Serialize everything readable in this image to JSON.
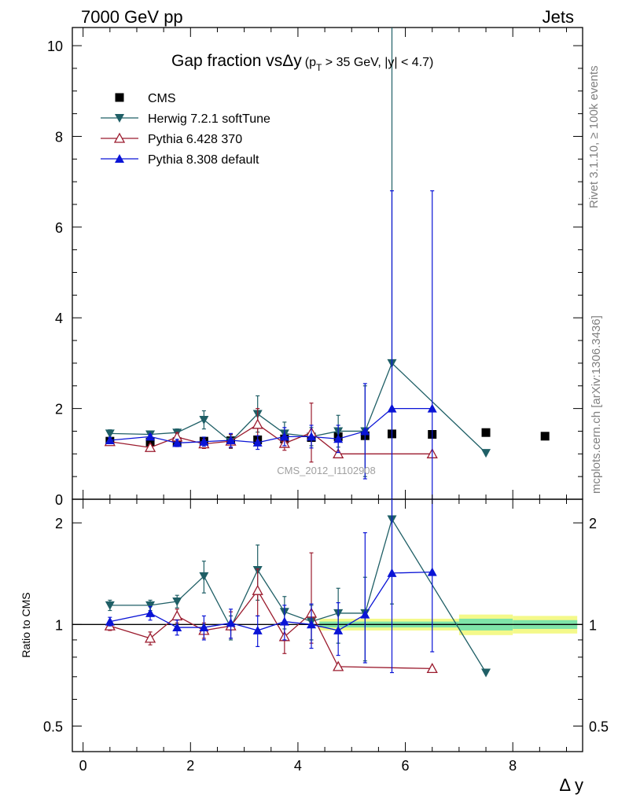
{
  "header": {
    "left": "7000 GeV pp",
    "right": "Jets"
  },
  "side_labels": {
    "rivet": "Rivet 3.1.10, ≥ 100k events",
    "mcplots": "mcplots.cern.ch [arXiv:1306.3436]"
  },
  "watermark": "CMS_2012_I1102908",
  "colors": {
    "CMS": "#000000",
    "Herwig": "#1f5f66",
    "Pythia6": "#9b1b2e",
    "Pythia8": "#0a14d6",
    "band_inner": "#7fe4a8",
    "band_outer": "#f4f98a"
  },
  "chart_data": [
    {
      "type": "scatter",
      "title_main": "Gap fraction vsΔy",
      "title_paren": "(p",
      "title_sub": "T",
      "title_rest": " > 35 GeV, |y| < 4.7)",
      "xlabel": "Δ y",
      "ylabel": "",
      "xlim": [
        -0.2,
        9.3
      ],
      "ylim": [
        0,
        10.4
      ],
      "y_ticks": [
        "0",
        "2",
        "4",
        "6",
        "8",
        "10"
      ],
      "x_ticks": [
        "0",
        "2",
        "4",
        "6",
        "8"
      ],
      "legend_position": "top-left",
      "series": [
        {
          "name": "CMS",
          "key": "CMS",
          "marker": "square",
          "x": [
            0.5,
            1.25,
            1.75,
            2.25,
            2.75,
            3.25,
            3.75,
            4.25,
            4.75,
            5.25,
            5.75,
            6.5,
            7.5,
            8.6
          ],
          "y": [
            1.28,
            1.26,
            1.27,
            1.28,
            1.29,
            1.31,
            1.33,
            1.36,
            1.38,
            1.4,
            1.44,
            1.43,
            1.47,
            1.39
          ]
        },
        {
          "name": "Herwig 7.2.1 softTune",
          "key": "Herwig",
          "marker": "triangle-down",
          "x": [
            0.5,
            1.25,
            1.75,
            2.25,
            2.75,
            3.25,
            3.75,
            4.25,
            4.75,
            5.25,
            5.75,
            7.5
          ],
          "y": [
            1.45,
            1.43,
            1.47,
            1.75,
            1.27,
            1.88,
            1.45,
            1.38,
            1.5,
            1.5,
            3.0,
            1.02
          ],
          "err": [
            0.08,
            0.06,
            0.08,
            0.2,
            0.15,
            0.4,
            0.25,
            0.2,
            0.35,
            1.0,
            7.5,
            0
          ]
        },
        {
          "name": "Pythia 6.428 370",
          "key": "Pythia6",
          "marker": "triangle-up-open",
          "x": [
            0.5,
            1.25,
            1.75,
            2.25,
            2.75,
            3.25,
            3.75,
            4.25,
            4.75,
            6.5
          ],
          "y": [
            1.27,
            1.14,
            1.37,
            1.22,
            1.28,
            1.65,
            1.23,
            1.47,
            1.0,
            1.0
          ],
          "err": [
            0.05,
            0.07,
            0.1,
            0.1,
            0.15,
            0.35,
            0.15,
            0.65,
            0,
            0
          ]
        },
        {
          "name": "Pythia 8.308 default",
          "key": "Pythia8",
          "marker": "triangle-up",
          "x": [
            0.5,
            1.25,
            1.75,
            2.25,
            2.75,
            3.25,
            3.75,
            4.25,
            4.75,
            5.25,
            5.75,
            6.5
          ],
          "y": [
            1.3,
            1.38,
            1.24,
            1.27,
            1.3,
            1.25,
            1.38,
            1.38,
            1.33,
            1.5,
            2.0,
            2.0
          ],
          "err": [
            0.06,
            0.05,
            0.08,
            0.1,
            0.15,
            0.15,
            0.2,
            0.25,
            0.3,
            1.05,
            4.8,
            4.8
          ]
        }
      ]
    },
    {
      "type": "scatter",
      "title": "",
      "xlabel": "Δ y",
      "ylabel": "Ratio to CMS",
      "xlim": [
        -0.2,
        9.3
      ],
      "ylim": [
        0.42,
        2.35
      ],
      "y_scale": "log",
      "y_ticks": [
        "0.5",
        "1",
        "2"
      ],
      "reference_line": 1,
      "band": [
        {
          "x0": 4.4,
          "x1": 7.0,
          "inner": 0.02,
          "outer": 0.04
        },
        {
          "x0": 7.0,
          "x1": 8.0,
          "inner": 0.04,
          "outer": 0.07
        },
        {
          "x0": 8.0,
          "x1": 9.2,
          "inner": 0.03,
          "outer": 0.06
        }
      ],
      "series": [
        {
          "name": "Herwig 7.2.1 softTune",
          "key": "Herwig",
          "marker": "triangle-down",
          "x": [
            0.5,
            1.25,
            1.75,
            2.25,
            2.75,
            3.25,
            3.75,
            4.25,
            4.75,
            5.25,
            5.75,
            7.5
          ],
          "y": [
            1.14,
            1.14,
            1.17,
            1.39,
            0.98,
            1.45,
            1.09,
            1.02,
            1.08,
            1.08,
            2.05,
            0.72
          ],
          "err_lo": [
            0.04,
            0.04,
            0.05,
            0.15,
            0.08,
            0.27,
            0.12,
            0.12,
            0.2,
            0.3,
            0.9,
            0
          ],
          "err_hi": [
            0.04,
            0.04,
            0.05,
            0.15,
            0.08,
            0.27,
            0.12,
            0.12,
            0.2,
            0.3,
            0.9,
            0
          ]
        },
        {
          "name": "Pythia 6.428 370",
          "key": "Pythia6",
          "marker": "triangle-up-open",
          "x": [
            0.5,
            1.25,
            1.75,
            2.25,
            2.75,
            3.25,
            3.75,
            4.25,
            4.75,
            6.5
          ],
          "y": [
            0.99,
            0.91,
            1.06,
            0.96,
            0.99,
            1.26,
            0.92,
            1.08,
            0.75,
            0.74
          ],
          "err_lo": [
            0.03,
            0.04,
            0.05,
            0.05,
            0.08,
            0.2,
            0.1,
            0.2,
            0,
            0
          ],
          "err_hi": [
            0.03,
            0.04,
            0.05,
            0.05,
            0.1,
            0.2,
            0.1,
            0.55,
            0,
            0
          ]
        },
        {
          "name": "Pythia 8.308 default",
          "key": "Pythia8",
          "marker": "triangle-up",
          "x": [
            0.5,
            1.25,
            1.75,
            2.25,
            2.75,
            3.25,
            3.75,
            4.25,
            4.75,
            5.25,
            5.75,
            6.5
          ],
          "y": [
            1.02,
            1.08,
            0.98,
            0.98,
            1.01,
            0.96,
            1.02,
            1.0,
            0.96,
            1.07,
            1.42,
            1.43
          ],
          "err_lo": [
            0.03,
            0.05,
            0.05,
            0.08,
            0.1,
            0.1,
            0.12,
            0.15,
            0.15,
            0.3,
            0.7,
            0.6
          ],
          "err_hi": [
            0.03,
            0.05,
            0.05,
            0.08,
            0.1,
            0.1,
            0.12,
            0.15,
            0.2,
            0.8,
            1.0,
            1.0
          ]
        }
      ]
    }
  ]
}
